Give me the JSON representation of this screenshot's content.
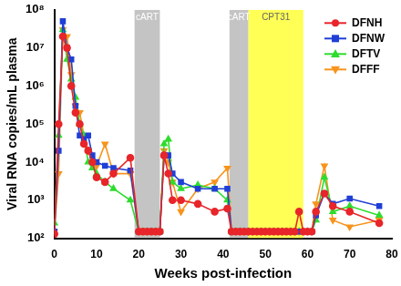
{
  "chart_data": {
    "type": "line",
    "x_label": "Weeks post-infection",
    "y_label": "Viral RNA copies/mL plasma",
    "log": "y",
    "grid": false,
    "legend": "top-right",
    "xlim": [
      0,
      80
    ],
    "xticks": [
      0,
      10,
      20,
      30,
      40,
      50,
      60,
      70,
      80
    ],
    "ylim": [
      100,
      100000000
    ],
    "yticks": [
      {
        "value": 100,
        "label": "10²"
      },
      {
        "value": 1000,
        "label": "10³"
      },
      {
        "value": 10000,
        "label": "10⁴"
      },
      {
        "value": 100000,
        "label": "10⁵"
      },
      {
        "value": 1000000,
        "label": "10⁶"
      },
      {
        "value": 10000000,
        "label": "10⁷"
      },
      {
        "value": 100000000,
        "label": "10⁸"
      }
    ],
    "annotations": [
      {
        "text": "cART",
        "start": 19,
        "end": 25,
        "color": "#c4c4c4"
      },
      {
        "text": "cART",
        "start": 41.5,
        "end": 46,
        "color": "#c4c4c4"
      },
      {
        "text": "CPT31",
        "start": 46,
        "end": 59,
        "color": "#ffff55"
      }
    ],
    "x": [
      0,
      1,
      2,
      3,
      4,
      5,
      6,
      7,
      8,
      9,
      10,
      12,
      14,
      18,
      20,
      21,
      22,
      23,
      24,
      25,
      26,
      27,
      28,
      30,
      34,
      38,
      41,
      42,
      43,
      44,
      45,
      46,
      47,
      48,
      49,
      50,
      51,
      52,
      53,
      54,
      55,
      56,
      57,
      58,
      59,
      60,
      61,
      62,
      64,
      66,
      70,
      77
    ],
    "series": [
      {
        "name": "DFNH",
        "color": "#e8252a",
        "marker": "circle",
        "values": [
          130,
          100000,
          20000000,
          10000000,
          1000000,
          200000,
          100000,
          30000,
          20000,
          10000,
          4000,
          3000,
          5000,
          13000,
          150,
          150,
          150,
          150,
          150,
          150,
          15000,
          5000,
          1000,
          1000,
          800,
          500,
          600,
          150,
          150,
          150,
          150,
          150,
          150,
          150,
          150,
          150,
          150,
          150,
          150,
          150,
          150,
          150,
          150,
          500,
          150,
          150,
          150,
          500,
          1500,
          700,
          500,
          250
        ]
      },
      {
        "name": "DFNW",
        "color": "#1f3fd6",
        "marker": "square",
        "values": [
          150,
          20000,
          50000000,
          10000000,
          5000000,
          300000,
          50000,
          40000,
          50000,
          15000,
          10000,
          8000,
          7000,
          6000,
          150,
          150,
          150,
          150,
          150,
          150,
          15000,
          15000,
          5000,
          3000,
          2000,
          2000,
          2000,
          150,
          150,
          150,
          150,
          150,
          150,
          150,
          150,
          150,
          150,
          150,
          150,
          150,
          150,
          150,
          150,
          150,
          150,
          150,
          150,
          400,
          1500,
          800,
          1100,
          700
        ]
      },
      {
        "name": "DFTV",
        "color": "#2edc2e",
        "marker": "triangle",
        "values": [
          250,
          50000,
          30000000,
          5000000,
          1500000,
          500000,
          100000,
          50000,
          10000,
          7000,
          5000,
          3000,
          2000,
          1000,
          150,
          150,
          150,
          150,
          150,
          150,
          30000,
          40000,
          3000,
          2000,
          2500,
          2000,
          1000,
          150,
          150,
          150,
          150,
          150,
          150,
          150,
          150,
          150,
          150,
          150,
          150,
          150,
          150,
          150,
          150,
          150,
          150,
          150,
          150,
          300,
          4000,
          500,
          700,
          400
        ]
      },
      {
        "name": "DFFF",
        "color": "#f7941d",
        "marker": "triangle-down",
        "values": [
          150,
          5000,
          30000000,
          20000000,
          2000000,
          300000,
          200000,
          50000,
          20000,
          10000,
          8000,
          30000,
          5000,
          5000,
          150,
          150,
          150,
          150,
          150,
          150,
          20000,
          10000,
          3000,
          500,
          2000,
          3000,
          7000,
          150,
          150,
          150,
          150,
          150,
          150,
          150,
          150,
          150,
          150,
          150,
          150,
          150,
          150,
          150,
          150,
          150,
          150,
          150,
          150,
          800,
          8000,
          300,
          200,
          300
        ]
      }
    ]
  }
}
